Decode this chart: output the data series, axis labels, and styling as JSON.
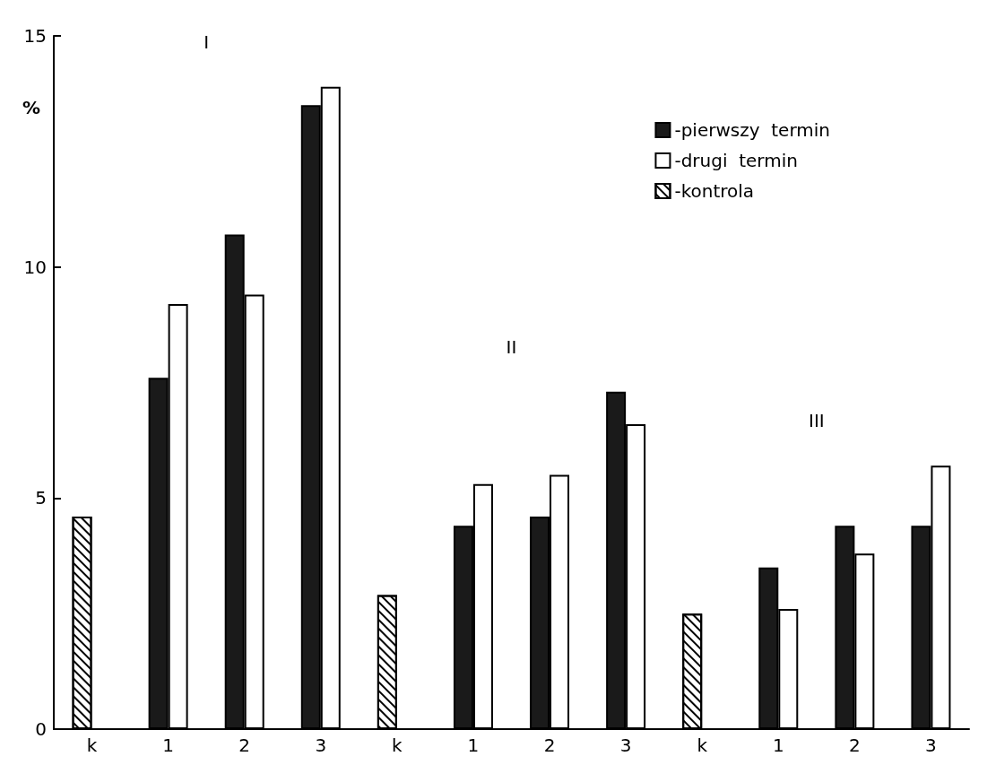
{
  "chart_data": {
    "type": "bar",
    "ylabel": "%",
    "categories": [
      "k",
      "1",
      "2",
      "3",
      "k",
      "1",
      "2",
      "3",
      "k",
      "1",
      "2",
      "3"
    ],
    "series": [
      {
        "name": "-pierwszy  termin",
        "color": "#1a1a1a",
        "values": [
          null,
          7.6,
          10.7,
          13.5,
          null,
          4.4,
          4.6,
          7.3,
          null,
          3.5,
          4.4,
          4.4
        ]
      },
      {
        "name": "-drugi  termin",
        "color": "#ffffff",
        "values": [
          null,
          9.2,
          9.4,
          13.9,
          null,
          5.3,
          5.5,
          6.6,
          null,
          2.6,
          3.8,
          5.7
        ]
      },
      {
        "name": "-kontrola",
        "color": "#ffffff",
        "values": [
          4.6,
          null,
          null,
          null,
          2.9,
          null,
          null,
          null,
          2.5,
          null,
          null,
          null
        ]
      }
    ],
    "annotations": [
      "I",
      "II",
      "III"
    ],
    "ylim": [
      0,
      15
    ],
    "yticks": [
      0,
      5,
      10,
      15
    ],
    "grid": false,
    "legend": "top right"
  }
}
